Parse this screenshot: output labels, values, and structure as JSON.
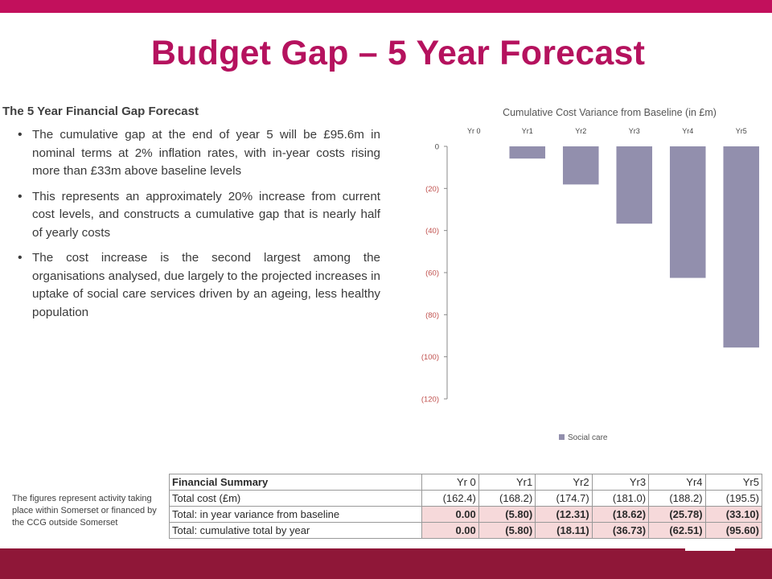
{
  "title": "Budget Gap – 5 Year Forecast",
  "section_heading": "The 5 Year Financial Gap Forecast",
  "bullets": [
    "The cumulative gap at the end of year 5 will be £95.6m in nominal terms at 2% inflation rates, with in-year costs rising more than £33m above baseline levels",
    "This represents an approximately 20% increase from current cost levels, and constructs a cumulative gap that is nearly half of yearly costs",
    "The cost increase is the second largest among the organisations analysed, due largely to the projected increases in uptake of social care services driven by an ageing, less healthy population"
  ],
  "bullet_glyph": "•",
  "footnote": "The figures represent activity taking place within Somerset or financed by the CCG outside Somerset",
  "colors": {
    "accent": "#b5125e",
    "top_bar": "#c2105c",
    "bottom_bar": "#8f1738",
    "bar": "#928fad",
    "highlight": "#f6d9da",
    "tick_label": "#c0504d"
  },
  "chart_data": {
    "type": "bar",
    "title": "Cumulative Cost Variance from Baseline (in £m)",
    "categories": [
      "Yr 0",
      "Yr1",
      "Yr2",
      "Yr3",
      "Yr4",
      "Yr5"
    ],
    "series": [
      {
        "name": "Social care",
        "values": [
          0,
          -5.8,
          -18.11,
          -36.73,
          -62.51,
          -95.6
        ]
      }
    ],
    "ylim": [
      -120,
      0
    ],
    "yticks": [
      0,
      -20,
      -40,
      -60,
      -80,
      -100,
      -120
    ],
    "ytick_labels": [
      "0",
      "(20)",
      "(40)",
      "(60)",
      "(80)",
      "(100)",
      "(120)"
    ],
    "xaxis_position": "top",
    "legend_position": "bottom-center",
    "grid": false
  },
  "table": {
    "header": [
      "Financial Summary",
      "Yr 0",
      "Yr1",
      "Yr2",
      "Yr3",
      "Yr4",
      "Yr5"
    ],
    "rows": [
      {
        "label": "Total cost (£m)",
        "values": [
          "(162.4)",
          "(168.2)",
          "(174.7)",
          "(181.0)",
          "(188.2)",
          "(195.5)"
        ],
        "highlight": false
      },
      {
        "label": "Total: in year variance from baseline",
        "values": [
          "0.00",
          "(5.80)",
          "(12.31)",
          "(18.62)",
          "(25.78)",
          "(33.10)"
        ],
        "highlight": true
      },
      {
        "label": "Total: cumulative total by year",
        "values": [
          "0.00",
          "(5.80)",
          "(18.11)",
          "(36.73)",
          "(62.51)",
          "(95.60)"
        ],
        "highlight": true
      }
    ]
  }
}
